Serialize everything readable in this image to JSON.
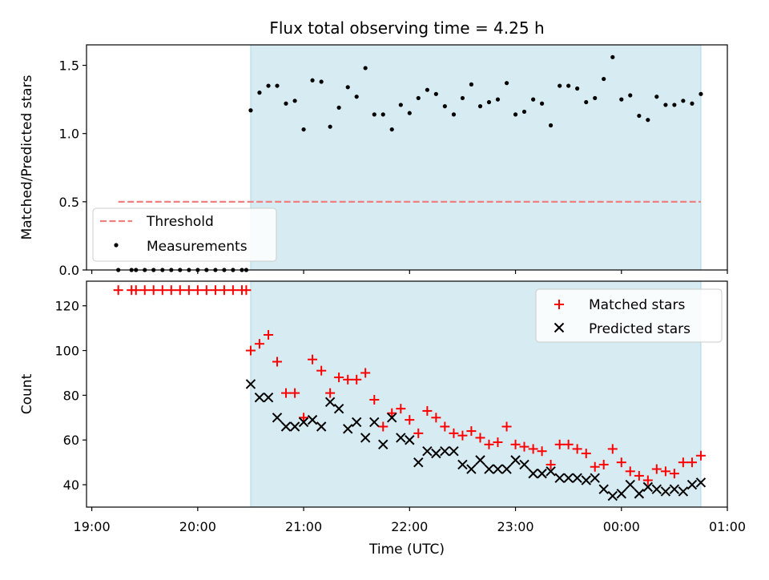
{
  "title": "Flux total observing time = 4.25 h",
  "chart_data": [
    {
      "type": "scatter",
      "panel": "top",
      "ylabel": "Matched/Predicted stars",
      "ylim": [
        0,
        1.65
      ],
      "yticks": [
        0.0,
        0.5,
        1.0,
        1.5
      ],
      "ytick_labels": [
        "0.0",
        "0.5",
        "1.0",
        "1.5"
      ],
      "xlim": [
        -0.05,
        6.0
      ],
      "xaxis": "hours after 19:00 UTC",
      "shaded_region": {
        "from": 1.5,
        "to": 5.75,
        "color": "#add8e6"
      },
      "threshold": {
        "name": "Threshold",
        "value": 0.5,
        "from": 0.25,
        "to": 5.75,
        "color": "#f08080",
        "style": "dashed"
      },
      "legend": {
        "position": "lower-left",
        "entries": [
          "Threshold",
          "Measurements"
        ]
      },
      "series": [
        {
          "name": "Measurements",
          "color": "#000000",
          "marker": "dot",
          "x": [
            0.25,
            0.375,
            0.417,
            0.5,
            0.583,
            0.667,
            0.75,
            0.833,
            0.917,
            1.0,
            1.083,
            1.167,
            1.25,
            1.333,
            1.417,
            1.458,
            1.5,
            1.583,
            1.667,
            1.75,
            1.833,
            1.917,
            2.0,
            2.083,
            2.167,
            2.25,
            2.333,
            2.417,
            2.5,
            2.583,
            2.667,
            2.75,
            2.833,
            2.917,
            3.0,
            3.083,
            3.167,
            3.25,
            3.333,
            3.417,
            3.5,
            3.583,
            3.667,
            3.75,
            3.833,
            3.917,
            4.0,
            4.083,
            4.167,
            4.25,
            4.333,
            4.417,
            4.5,
            4.583,
            4.667,
            4.75,
            4.833,
            4.917,
            5.0,
            5.083,
            5.167,
            5.25,
            5.333,
            5.417,
            5.5,
            5.583,
            5.667,
            5.75
          ],
          "y": [
            0,
            0,
            0,
            0,
            0,
            0,
            0,
            0,
            0,
            0,
            0,
            0,
            0,
            0,
            0,
            0,
            1.17,
            1.3,
            1.35,
            1.35,
            1.22,
            1.24,
            1.03,
            1.39,
            1.38,
            1.05,
            1.19,
            1.34,
            1.27,
            1.48,
            1.14,
            1.14,
            1.03,
            1.21,
            1.15,
            1.26,
            1.32,
            1.29,
            1.2,
            1.14,
            1.26,
            1.36,
            1.2,
            1.23,
            1.25,
            1.37,
            1.14,
            1.16,
            1.25,
            1.22,
            1.06,
            1.35,
            1.35,
            1.33,
            1.23,
            1.26,
            1.4,
            1.56,
            1.25,
            1.28,
            1.13,
            1.1,
            1.27,
            1.21,
            1.21,
            1.24,
            1.22,
            1.29
          ]
        }
      ]
    },
    {
      "type": "scatter",
      "panel": "bottom",
      "xlabel": "Time (UTC)",
      "ylabel": "Count",
      "ylim": [
        30,
        131
      ],
      "yticks": [
        40,
        60,
        80,
        100,
        120
      ],
      "xlim": [
        -0.05,
        6.0
      ],
      "xticks": [
        0,
        1,
        2,
        3,
        4,
        5,
        6
      ],
      "xtick_labels": [
        "19:00",
        "20:00",
        "21:00",
        "22:00",
        "23:00",
        "00:00",
        "01:00"
      ],
      "shaded_region": {
        "from": 1.5,
        "to": 5.75,
        "color": "#add8e6"
      },
      "legend": {
        "position": "upper-right",
        "entries": [
          "Matched stars",
          "Predicted stars"
        ]
      },
      "series": [
        {
          "name": "Matched stars",
          "color": "#ff0000",
          "marker": "plus",
          "x": [
            0.25,
            0.375,
            0.417,
            0.5,
            0.583,
            0.667,
            0.75,
            0.833,
            0.917,
            1.0,
            1.083,
            1.167,
            1.25,
            1.333,
            1.417,
            1.458,
            1.5,
            1.583,
            1.667,
            1.75,
            1.833,
            1.917,
            2.0,
            2.083,
            2.167,
            2.25,
            2.333,
            2.417,
            2.5,
            2.583,
            2.667,
            2.75,
            2.833,
            2.917,
            3.0,
            3.083,
            3.167,
            3.25,
            3.333,
            3.417,
            3.5,
            3.583,
            3.667,
            3.75,
            3.833,
            3.917,
            4.0,
            4.083,
            4.167,
            4.25,
            4.333,
            4.417,
            4.5,
            4.583,
            4.667,
            4.75,
            4.833,
            4.917,
            5.0,
            5.083,
            5.167,
            5.25,
            5.333,
            5.417,
            5.5,
            5.583,
            5.667,
            5.75
          ],
          "y": [
            127,
            127,
            127,
            127,
            127,
            127,
            127,
            127,
            127,
            127,
            127,
            127,
            127,
            127,
            127,
            127,
            100,
            103,
            107,
            95,
            81,
            81,
            70,
            96,
            91,
            81,
            88,
            87,
            87,
            90,
            78,
            66,
            72,
            74,
            69,
            63,
            73,
            70,
            66,
            63,
            62,
            64,
            61,
            58,
            59,
            66,
            58,
            57,
            56,
            55,
            49,
            58,
            58,
            56,
            54,
            48,
            49,
            56,
            50,
            46,
            44,
            42,
            47,
            46,
            45,
            50,
            50,
            53
          ]
        },
        {
          "name": "Predicted stars",
          "color": "#000000",
          "marker": "x",
          "x": [
            1.5,
            1.583,
            1.667,
            1.75,
            1.833,
            1.917,
            2.0,
            2.083,
            2.167,
            2.25,
            2.333,
            2.417,
            2.5,
            2.583,
            2.667,
            2.75,
            2.833,
            2.917,
            3.0,
            3.083,
            3.167,
            3.25,
            3.333,
            3.417,
            3.5,
            3.583,
            3.667,
            3.75,
            3.833,
            3.917,
            4.0,
            4.083,
            4.167,
            4.25,
            4.333,
            4.417,
            4.5,
            4.583,
            4.667,
            4.75,
            4.833,
            4.917,
            5.0,
            5.083,
            5.167,
            5.25,
            5.333,
            5.417,
            5.5,
            5.583,
            5.667,
            5.75
          ],
          "y": [
            85,
            79,
            79,
            70,
            66,
            66,
            68,
            69,
            66,
            77,
            74,
            65,
            68,
            61,
            68,
            58,
            70,
            61,
            60,
            50,
            55,
            54,
            55,
            55,
            49,
            47,
            51,
            47,
            47,
            47,
            51,
            49,
            45,
            45,
            46,
            43,
            43,
            43,
            42,
            43,
            38,
            35,
            36,
            40,
            36,
            39,
            38,
            37,
            38,
            37,
            40,
            41
          ]
        }
      ]
    }
  ]
}
